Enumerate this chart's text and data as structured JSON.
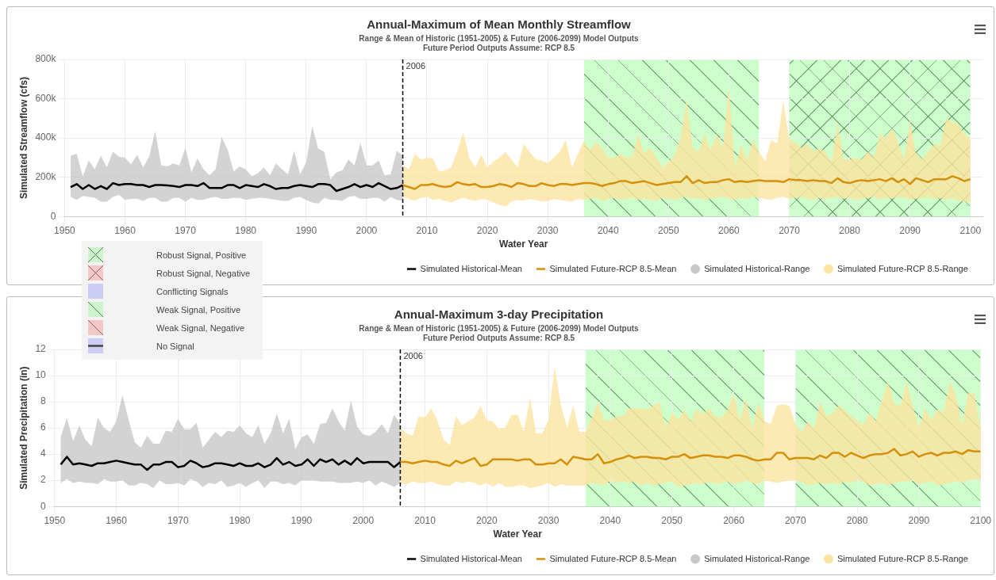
{
  "chart_data": [
    {
      "type": "line",
      "title": "Annual-Maximum of Mean Monthly Streamflow",
      "subtitle": "Range & Mean of Historic (1951-2005) & Future (2006-2099) Model Outputs\nFuture Period Outputs Assume: RCP 8.5",
      "xlabel": "Water Year",
      "ylabel": "Simulated Streamflow (cfs)",
      "xlim": [
        1950,
        2102
      ],
      "xticks": [
        1950,
        1960,
        1970,
        1980,
        1990,
        2000,
        2010,
        2020,
        2030,
        2040,
        2050,
        2060,
        2070,
        2080,
        2090,
        2100
      ],
      "ylim": [
        0,
        800000
      ],
      "yticks": [
        {
          "value": 0,
          "label": "0"
        },
        {
          "value": 200000,
          "label": "200k"
        },
        {
          "value": 400000,
          "label": "400k"
        },
        {
          "value": 600000,
          "label": "600k"
        },
        {
          "value": 800000,
          "label": "800k"
        }
      ],
      "grid": true,
      "legend": "bottom right",
      "marker": "none",
      "bands": [
        {
          "axis": "x",
          "from": 2036,
          "to": 2065,
          "color": "#ccffcc"
        },
        {
          "axis": "x",
          "from": 2070,
          "to": 2100,
          "color": "#ccffcc"
        }
      ],
      "ref_lines": [
        {
          "axis": "x",
          "value": 2006,
          "label": "2006",
          "color": "#000000",
          "line_style": "dashed"
        }
      ],
      "series": [
        {
          "name": "Simulated Historical-Mean",
          "type": "line",
          "color": "#000000",
          "x": [
            1951,
            1952,
            1953,
            1954,
            1955,
            1956,
            1957,
            1958,
            1959,
            1960,
            1961,
            1962,
            1963,
            1964,
            1965,
            1966,
            1967,
            1968,
            1969,
            1970,
            1971,
            1972,
            1973,
            1974,
            1975,
            1976,
            1977,
            1978,
            1979,
            1980,
            1981,
            1982,
            1983,
            1984,
            1985,
            1986,
            1987,
            1988,
            1989,
            1990,
            1991,
            1992,
            1993,
            1994,
            1995,
            1996,
            1997,
            1998,
            1999,
            2000,
            2001,
            2002,
            2003,
            2004,
            2005,
            2006
          ],
          "values": [
            150000,
            165000,
            140000,
            160000,
            140000,
            155000,
            140000,
            170000,
            160000,
            165000,
            165000,
            160000,
            160000,
            150000,
            160000,
            160000,
            158000,
            155000,
            150000,
            160000,
            160000,
            155000,
            170000,
            145000,
            145000,
            145000,
            160000,
            160000,
            145000,
            160000,
            155000,
            150000,
            165000,
            155000,
            140000,
            145000,
            145000,
            155000,
            160000,
            155000,
            150000,
            165000,
            165000,
            160000,
            130000,
            140000,
            150000,
            165000,
            150000,
            160000,
            150000,
            170000,
            155000,
            140000,
            145000,
            160000
          ],
          "lower": [
            100000,
            85000,
            105000,
            100000,
            95000,
            75000,
            75000,
            100000,
            110000,
            85000,
            90000,
            90000,
            80000,
            95000,
            95000,
            75000,
            75000,
            95000,
            95000,
            75000,
            95000,
            85000,
            85000,
            95000,
            100000,
            90000,
            90000,
            95000,
            95000,
            85000,
            90000,
            95000,
            95000,
            90000,
            85000,
            80000,
            80000,
            95000,
            100000,
            85000,
            70000,
            65000,
            95000,
            85000,
            85000,
            80000,
            100000,
            105000,
            90000,
            90000,
            95000,
            95000,
            75000,
            100000,
            85000,
            80000
          ],
          "upper": [
            310000,
            320000,
            205000,
            285000,
            240000,
            310000,
            250000,
            330000,
            305000,
            300000,
            265000,
            315000,
            250000,
            305000,
            435000,
            260000,
            255000,
            270000,
            260000,
            350000,
            225000,
            295000,
            240000,
            210000,
            240000,
            405000,
            340000,
            230000,
            255000,
            240000,
            205000,
            220000,
            250000,
            210000,
            270000,
            240000,
            215000,
            335000,
            215000,
            275000,
            460000,
            345000,
            330000,
            190000,
            225000,
            235000,
            290000,
            260000,
            375000,
            260000,
            260000,
            285000,
            210000,
            215000,
            335000,
            310000
          ]
        },
        {
          "name": "Simulated Historical-Range",
          "type": "area",
          "color": "#c8c8c8"
        },
        {
          "name": "Simulated Future-RCP 8.5-Mean",
          "type": "line",
          "color": "#d4900a",
          "x": [
            2006,
            2007,
            2008,
            2009,
            2010,
            2011,
            2012,
            2013,
            2014,
            2015,
            2016,
            2017,
            2018,
            2019,
            2020,
            2021,
            2022,
            2023,
            2024,
            2025,
            2026,
            2027,
            2028,
            2029,
            2030,
            2031,
            2032,
            2033,
            2034,
            2035,
            2036,
            2037,
            2038,
            2039,
            2040,
            2041,
            2042,
            2043,
            2044,
            2045,
            2046,
            2047,
            2048,
            2049,
            2050,
            2051,
            2052,
            2053,
            2054,
            2055,
            2056,
            2057,
            2058,
            2059,
            2060,
            2061,
            2062,
            2063,
            2064,
            2065,
            2066,
            2067,
            2068,
            2069,
            2070,
            2071,
            2072,
            2073,
            2074,
            2075,
            2076,
            2077,
            2078,
            2079,
            2080,
            2081,
            2082,
            2083,
            2084,
            2085,
            2086,
            2087,
            2088,
            2089,
            2090,
            2091,
            2092,
            2093,
            2094,
            2095,
            2096,
            2097,
            2098,
            2099,
            2100
          ],
          "values": [
            160000,
            150000,
            140000,
            160000,
            160000,
            165000,
            155000,
            150000,
            155000,
            175000,
            165000,
            160000,
            165000,
            150000,
            150000,
            155000,
            165000,
            160000,
            150000,
            170000,
            165000,
            155000,
            155000,
            170000,
            160000,
            155000,
            165000,
            165000,
            160000,
            165000,
            170000,
            170000,
            165000,
            155000,
            165000,
            170000,
            180000,
            180000,
            170000,
            175000,
            180000,
            170000,
            160000,
            165000,
            170000,
            175000,
            175000,
            205000,
            170000,
            185000,
            170000,
            175000,
            175000,
            185000,
            190000,
            175000,
            180000,
            175000,
            180000,
            185000,
            180000,
            180000,
            180000,
            175000,
            190000,
            185000,
            185000,
            180000,
            185000,
            180000,
            180000,
            170000,
            195000,
            175000,
            170000,
            180000,
            185000,
            180000,
            185000,
            190000,
            180000,
            195000,
            175000,
            190000,
            165000,
            195000,
            185000,
            175000,
            190000,
            190000,
            190000,
            205000,
            195000,
            180000,
            190000
          ],
          "lower": [
            100000,
            90000,
            80000,
            95000,
            100000,
            85000,
            90000,
            80000,
            70000,
            85000,
            95000,
            85000,
            80000,
            90000,
            85000,
            70000,
            60000,
            50000,
            75000,
            85000,
            80000,
            90000,
            85000,
            75000,
            80000,
            90000,
            85000,
            80000,
            75000,
            90000,
            85000,
            90000,
            95000,
            80000,
            90000,
            95000,
            85000,
            90000,
            95000,
            85000,
            90000,
            85000,
            80000,
            95000,
            90000,
            85000,
            95000,
            100000,
            90000,
            95000,
            85000,
            90000,
            95000,
            100000,
            90000,
            85000,
            95000,
            90000,
            100000,
            95000,
            90000,
            85000,
            95000,
            100000,
            90000,
            95000,
            100000,
            90000,
            85000,
            95000,
            90000,
            95000,
            100000,
            90000,
            95000,
            85000,
            90000,
            95000,
            100000,
            85000,
            95000,
            90000,
            100000,
            95000,
            85000,
            90000,
            95000,
            100000,
            90000,
            95000,
            85000,
            95000,
            80000,
            75000,
            70000
          ],
          "upper": [
            260000,
            240000,
            320000,
            290000,
            300000,
            295000,
            230000,
            235000,
            250000,
            330000,
            430000,
            300000,
            250000,
            315000,
            250000,
            280000,
            300000,
            330000,
            290000,
            250000,
            370000,
            330000,
            290000,
            285000,
            270000,
            300000,
            330000,
            390000,
            250000,
            320000,
            385000,
            340000,
            380000,
            350000,
            300000,
            300000,
            320000,
            300000,
            310000,
            420000,
            320000,
            350000,
            300000,
            250000,
            280000,
            310000,
            400000,
            600000,
            350000,
            330000,
            420000,
            340000,
            420000,
            350000,
            665000,
            250000,
            370000,
            290000,
            390000,
            330000,
            280000,
            390000,
            370000,
            590000,
            390000,
            380000,
            350000,
            370000,
            330000,
            350000,
            330000,
            280000,
            480000,
            290000,
            290000,
            300000,
            290000,
            330000,
            300000,
            420000,
            400000,
            450000,
            380000,
            290000,
            480000,
            320000,
            290000,
            330000,
            370000,
            360000,
            500000,
            480000,
            470000,
            420000,
            400000
          ]
        },
        {
          "name": "Simulated Future-RCP 8.5-Range",
          "type": "area",
          "color": "#fbe4a0"
        }
      ]
    },
    {
      "type": "line",
      "title": "Annual-Maximum 3-day Precipitation",
      "subtitle": "Range & Mean of Historic (1951-2005) & Future (2006-2099) Model Outputs\nFuture Period Outputs Assume: RCP 8.5",
      "xlabel": "Water Year",
      "ylabel": "Simulated Precipitation (in)",
      "xlim": [
        1950,
        2100
      ],
      "xticks": [
        1950,
        1960,
        1970,
        1980,
        1990,
        2000,
        2010,
        2020,
        2030,
        2040,
        2050,
        2060,
        2070,
        2080,
        2090,
        2100
      ],
      "ylim": [
        0,
        12
      ],
      "yticks": [
        0,
        2,
        4,
        6,
        8,
        10,
        12
      ],
      "grid": true,
      "legend": "bottom right",
      "marker": "none",
      "bands": [
        {
          "axis": "x",
          "from": 2036,
          "to": 2065,
          "color": "#ccffcc"
        },
        {
          "axis": "x",
          "from": 2070,
          "to": 2100,
          "color": "#ccffcc"
        }
      ],
      "ref_lines": [
        {
          "axis": "x",
          "value": 2006,
          "label": "2006",
          "color": "#000000",
          "line_style": "dashed"
        }
      ],
      "series": [
        {
          "name": "Simulated Historical-Mean",
          "type": "line",
          "color": "#000000",
          "x": [
            1951,
            1952,
            1953,
            1954,
            1955,
            1956,
            1957,
            1958,
            1959,
            1960,
            1961,
            1962,
            1963,
            1964,
            1965,
            1966,
            1967,
            1968,
            1969,
            1970,
            1971,
            1972,
            1973,
            1974,
            1975,
            1976,
            1977,
            1978,
            1979,
            1980,
            1981,
            1982,
            1983,
            1984,
            1985,
            1986,
            1987,
            1988,
            1989,
            1990,
            1991,
            1992,
            1993,
            1994,
            1995,
            1996,
            1997,
            1998,
            1999,
            2000,
            2001,
            2002,
            2003,
            2004,
            2005,
            2006
          ],
          "values": [
            3.2,
            3.8,
            3.2,
            3.3,
            3.2,
            3.1,
            3.3,
            3.3,
            3.4,
            3.5,
            3.4,
            3.3,
            3.2,
            3.2,
            2.8,
            3.2,
            3.2,
            3.4,
            3.4,
            3.0,
            3.1,
            3.5,
            3.3,
            3.0,
            3.1,
            3.3,
            3.3,
            3.2,
            3.1,
            3.3,
            3.1,
            3.1,
            3.3,
            3.0,
            3.2,
            3.7,
            3.2,
            3.4,
            3.1,
            3.2,
            3.6,
            3.1,
            3.6,
            3.4,
            3.6,
            3.2,
            3.5,
            3.2,
            3.7,
            3.3,
            3.4,
            3.4,
            3.4,
            3.4,
            3.0,
            3.4
          ],
          "lower": [
            1.8,
            2.1,
            1.8,
            1.9,
            1.8,
            1.8,
            1.7,
            2.1,
            1.9,
            1.9,
            2.0,
            1.6,
            1.6,
            1.8,
            1.7,
            1.4,
            2.0,
            1.7,
            1.7,
            1.8,
            1.6,
            2.1,
            1.9,
            1.5,
            1.8,
            1.7,
            2.0,
            1.5,
            1.6,
            1.8,
            1.5,
            1.8,
            2.0,
            1.4,
            1.9,
            1.9,
            1.7,
            1.8,
            1.6,
            2.0,
            2.0,
            2.0,
            1.9,
            1.9,
            1.9,
            1.8,
            1.8,
            1.8,
            1.9,
            1.8,
            2.0,
            1.6,
            1.9,
            1.7,
            1.5,
            1.8
          ],
          "upper": [
            5.3,
            6.8,
            5.0,
            6.2,
            5.1,
            4.6,
            6.8,
            6.0,
            5.7,
            6.5,
            8.5,
            6.6,
            4.9,
            4.5,
            5.4,
            4.8,
            4.8,
            5.8,
            5.7,
            6.7,
            5.9,
            5.9,
            6.4,
            4.5,
            5.1,
            5.7,
            5.3,
            5.8,
            5.7,
            6.2,
            5.6,
            5.3,
            6.2,
            4.8,
            5.6,
            7.1,
            5.6,
            6.7,
            4.4,
            5.3,
            5.5,
            4.8,
            6.3,
            6.4,
            7.5,
            6.5,
            5.8,
            8.1,
            6.1,
            5.5,
            5.4,
            5.7,
            6.3,
            5.6,
            7.0,
            6.3
          ]
        },
        {
          "name": "Simulated Historical-Range",
          "type": "area",
          "color": "#c8c8c8"
        },
        {
          "name": "Simulated Future-RCP 8.5-Mean",
          "type": "line",
          "color": "#d4900a",
          "x": [
            2006,
            2007,
            2008,
            2009,
            2010,
            2011,
            2012,
            2013,
            2014,
            2015,
            2016,
            2017,
            2018,
            2019,
            2020,
            2021,
            2022,
            2023,
            2024,
            2025,
            2026,
            2027,
            2028,
            2029,
            2030,
            2031,
            2032,
            2033,
            2034,
            2035,
            2036,
            2037,
            2038,
            2039,
            2040,
            2041,
            2042,
            2043,
            2044,
            2045,
            2046,
            2047,
            2048,
            2049,
            2050,
            2051,
            2052,
            2053,
            2054,
            2055,
            2056,
            2057,
            2058,
            2059,
            2060,
            2061,
            2062,
            2063,
            2064,
            2065,
            2066,
            2067,
            2068,
            2069,
            2070,
            2071,
            2072,
            2073,
            2074,
            2075,
            2076,
            2077,
            2078,
            2079,
            2080,
            2081,
            2082,
            2083,
            2084,
            2085,
            2086,
            2087,
            2088,
            2089,
            2090,
            2091,
            2092,
            2093,
            2094,
            2095,
            2096,
            2097,
            2098,
            2099,
            2100
          ],
          "values": [
            3.4,
            3.4,
            3.3,
            3.4,
            3.5,
            3.4,
            3.4,
            3.2,
            3.1,
            3.5,
            3.3,
            3.5,
            3.7,
            3.1,
            3.2,
            3.6,
            3.6,
            3.6,
            3.6,
            3.5,
            3.6,
            3.6,
            3.2,
            3.2,
            3.3,
            3.3,
            3.6,
            3.2,
            3.8,
            3.7,
            3.6,
            3.6,
            4.0,
            3.3,
            3.4,
            3.6,
            3.7,
            3.9,
            3.7,
            3.8,
            3.8,
            3.7,
            3.7,
            3.6,
            3.8,
            3.8,
            4.0,
            3.7,
            3.8,
            3.9,
            3.9,
            3.8,
            3.8,
            3.7,
            3.9,
            3.9,
            3.8,
            3.6,
            3.5,
            3.6,
            3.6,
            4.1,
            4.1,
            3.6,
            3.7,
            3.7,
            3.7,
            3.6,
            3.9,
            3.7,
            4.1,
            4.1,
            3.8,
            4.1,
            3.9,
            3.7,
            3.9,
            4.0,
            4.0,
            4.1,
            4.4,
            3.9,
            4.0,
            4.2,
            3.8,
            4.0,
            4.1,
            3.9,
            4.1,
            4.1,
            4.2,
            4.0,
            4.3,
            4.2,
            4.2
          ],
          "lower": [
            1.8,
            1.7,
            1.9,
            1.8,
            1.8,
            1.9,
            1.7,
            1.6,
            1.6,
            1.9,
            1.8,
            1.9,
            1.8,
            1.6,
            1.8,
            1.5,
            1.8,
            1.5,
            1.5,
            1.6,
            1.6,
            1.4,
            1.5,
            1.6,
            1.8,
            1.5,
            1.7,
            1.6,
            1.6,
            1.6,
            1.6,
            1.8,
            1.7,
            1.6,
            2.0,
            1.8,
            1.9,
            1.8,
            1.9,
            1.6,
            1.8,
            1.6,
            1.7,
            1.8,
            1.9,
            1.5,
            1.6,
            1.7,
            1.8,
            1.7,
            1.9,
            1.7,
            1.8,
            1.9,
            1.7,
            1.8,
            2.0,
            1.8,
            1.7,
            2.0,
            1.9,
            1.8,
            1.9,
            2.0,
            2.0,
            1.9,
            1.6,
            1.7,
            1.8,
            1.7,
            1.8,
            1.7,
            1.9,
            1.8,
            2.0,
            1.9,
            1.6,
            1.7,
            1.8,
            1.6,
            1.8,
            1.9,
            1.9,
            2.0,
            1.7,
            1.8,
            1.9,
            1.6,
            1.7,
            1.8,
            1.9,
            1.8,
            2.0,
            2.1,
            2.0
          ],
          "upper": [
            6.0,
            5.6,
            5.4,
            6.9,
            6.8,
            7.5,
            6.6,
            5.1,
            4.7,
            6.9,
            6.2,
            6.5,
            6.8,
            7.7,
            6.6,
            6.5,
            5.9,
            6.0,
            7.0,
            7.0,
            5.7,
            8.3,
            5.6,
            5.6,
            6.6,
            10.7,
            7.8,
            6.0,
            7.7,
            5.7,
            5.7,
            6.8,
            8.0,
            6.6,
            6.6,
            6.9,
            6.9,
            7.5,
            7.5,
            7.5,
            7.4,
            7.7,
            8.0,
            6.0,
            7.2,
            6.6,
            7.4,
            6.5,
            7.4,
            7.1,
            7.5,
            6.9,
            6.8,
            7.4,
            8.6,
            6.6,
            8.3,
            6.0,
            8.0,
            6.5,
            6.3,
            7.7,
            7.8,
            7.7,
            6.3,
            5.7,
            6.5,
            6.0,
            8.0,
            6.9,
            7.1,
            7.7,
            7.4,
            6.9,
            6.6,
            6.2,
            7.2,
            6.5,
            8.1,
            9.6,
            7.8,
            7.7,
            9.6,
            7.7,
            6.0,
            7.5,
            6.6,
            7.4,
            7.2,
            9.6,
            8.5,
            6.2,
            8.7,
            8.6,
            6.0
          ]
        },
        {
          "name": "Simulated Future-RCP 8.5-Range",
          "type": "area",
          "color": "#fbe4a0"
        }
      ]
    },
    {
      "type": "other",
      "annotations": [
        "Robust Signal, Positive",
        "Robust Signal, Negative",
        "Conflicting Signals",
        "Weak Signal, Positive",
        "Weak Signal, Negative",
        "No Signal"
      ]
    }
  ]
}
